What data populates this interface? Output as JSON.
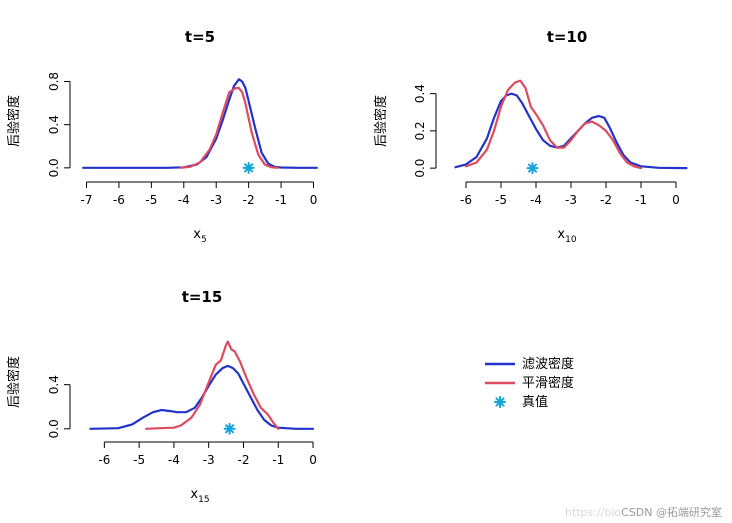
{
  "colors": {
    "filter": "#2233CC",
    "smooth": "#DE4B5F",
    "truth": "#13A4D8",
    "axis": "#000000"
  },
  "legend": {
    "items": [
      {
        "label": "滤波密度",
        "kind": "line",
        "color_key": "filter"
      },
      {
        "label": "平滑密度",
        "kind": "line",
        "color_key": "smooth"
      },
      {
        "label": "真值",
        "kind": "star",
        "color_key": "truth"
      }
    ]
  },
  "watermark": {
    "faint": "https://blo",
    "text": "CSDN @拓端研究室"
  },
  "chart_data": [
    {
      "type": "line",
      "title": "t=5",
      "ylabel": "后验密度",
      "xlabel_base": "x",
      "xlabel_sub": "5",
      "xlim": [
        -7.2,
        0.2
      ],
      "ylim": [
        -0.02,
        0.86
      ],
      "xticks": [
        -7,
        -6,
        -5,
        -4,
        -3,
        -2,
        -1,
        0
      ],
      "yticks": [
        0.0,
        0.4,
        0.8
      ],
      "yticklabels": [
        "0.0",
        "0.4",
        "0.8"
      ],
      "true_value": {
        "x": -2.0,
        "y": 0.0
      },
      "series": [
        {
          "name": "滤波密度",
          "color_key": "filter",
          "x": [
            -7.1,
            -4.5,
            -4.0,
            -3.6,
            -3.3,
            -3.0,
            -2.8,
            -2.6,
            -2.45,
            -2.3,
            -2.2,
            -2.1,
            -2.0,
            -1.8,
            -1.6,
            -1.4,
            -1.2,
            -1.0,
            -0.5,
            0.1
          ],
          "y": [
            0.0,
            0.0,
            0.005,
            0.03,
            0.1,
            0.27,
            0.44,
            0.63,
            0.76,
            0.82,
            0.8,
            0.74,
            0.62,
            0.37,
            0.14,
            0.04,
            0.01,
            0.003,
            0.0,
            0.0
          ]
        },
        {
          "name": "平滑密度",
          "color_key": "smooth",
          "x": [
            -4.1,
            -3.8,
            -3.5,
            -3.2,
            -3.0,
            -2.8,
            -2.6,
            -2.4,
            -2.3,
            -2.2,
            -2.1,
            -2.0,
            -1.9,
            -1.7,
            -1.5,
            -1.3,
            -1.1
          ],
          "y": [
            0.0,
            0.01,
            0.05,
            0.17,
            0.31,
            0.51,
            0.7,
            0.74,
            0.74,
            0.7,
            0.6,
            0.46,
            0.32,
            0.12,
            0.03,
            0.005,
            0.0
          ]
        }
      ]
    },
    {
      "type": "line",
      "title": "t=10",
      "ylabel": "后验密度",
      "xlabel_base": "x",
      "xlabel_sub": "10",
      "xlim": [
        -6.6,
        0.4
      ],
      "ylim": [
        -0.01,
        0.5
      ],
      "xticks": [
        -6,
        -5,
        -4,
        -3,
        -2,
        -1,
        0
      ],
      "yticks": [
        0.0,
        0.2,
        0.4
      ],
      "yticklabels": [
        "0.0",
        "0.2",
        "0.4"
      ],
      "true_value": {
        "x": -4.1,
        "y": 0.0
      },
      "series": [
        {
          "name": "滤波密度",
          "color_key": "filter",
          "x": [
            -6.3,
            -6.0,
            -5.7,
            -5.4,
            -5.2,
            -5.0,
            -4.85,
            -4.7,
            -4.55,
            -4.4,
            -4.2,
            -4.0,
            -3.8,
            -3.6,
            -3.4,
            -3.2,
            -3.0,
            -2.8,
            -2.6,
            -2.4,
            -2.2,
            -2.05,
            -1.9,
            -1.7,
            -1.5,
            -1.3,
            -1.0,
            -0.5,
            0.3
          ],
          "y": [
            0.005,
            0.02,
            0.06,
            0.16,
            0.27,
            0.36,
            0.39,
            0.4,
            0.39,
            0.35,
            0.28,
            0.21,
            0.15,
            0.12,
            0.11,
            0.12,
            0.16,
            0.2,
            0.24,
            0.27,
            0.28,
            0.27,
            0.22,
            0.14,
            0.07,
            0.03,
            0.01,
            0.002,
            0.0
          ]
        },
        {
          "name": "平滑密度",
          "color_key": "smooth",
          "x": [
            -6.0,
            -5.7,
            -5.4,
            -5.2,
            -5.0,
            -4.8,
            -4.6,
            -4.45,
            -4.3,
            -4.15,
            -4.0,
            -3.8,
            -3.6,
            -3.4,
            -3.2,
            -3.0,
            -2.8,
            -2.6,
            -2.4,
            -2.2,
            -2.0,
            -1.8,
            -1.6,
            -1.4,
            -1.2,
            -1.0
          ],
          "y": [
            0.01,
            0.03,
            0.1,
            0.2,
            0.33,
            0.42,
            0.46,
            0.47,
            0.43,
            0.33,
            0.29,
            0.23,
            0.15,
            0.11,
            0.11,
            0.15,
            0.2,
            0.24,
            0.25,
            0.23,
            0.2,
            0.15,
            0.08,
            0.03,
            0.01,
            0.0
          ]
        }
      ]
    },
    {
      "type": "line",
      "title": "t=15",
      "ylabel": "后验密度",
      "xlabel_base": "x",
      "xlabel_sub": "15",
      "xlim": [
        -6.7,
        0.2
      ],
      "ylim": [
        -0.02,
        0.85
      ],
      "xticks": [
        -6,
        -5,
        -4,
        -3,
        -2,
        -1,
        0
      ],
      "yticks": [
        0.0,
        0.4
      ],
      "yticklabels": [
        "0.0",
        "0.4"
      ],
      "true_value": {
        "x": -2.4,
        "y": 0.0
      },
      "series": [
        {
          "name": "滤波密度",
          "color_key": "filter",
          "x": [
            -6.4,
            -5.6,
            -5.2,
            -4.9,
            -4.6,
            -4.35,
            -4.1,
            -3.9,
            -3.65,
            -3.4,
            -3.2,
            -3.0,
            -2.8,
            -2.6,
            -2.45,
            -2.3,
            -2.15,
            -2.0,
            -1.8,
            -1.6,
            -1.4,
            -1.2,
            -1.0,
            -0.5,
            0.0
          ],
          "y": [
            0.0,
            0.005,
            0.04,
            0.1,
            0.15,
            0.17,
            0.16,
            0.15,
            0.15,
            0.19,
            0.28,
            0.39,
            0.49,
            0.55,
            0.57,
            0.55,
            0.5,
            0.41,
            0.29,
            0.17,
            0.08,
            0.03,
            0.01,
            0.0,
            0.0
          ]
        },
        {
          "name": "平滑密度",
          "color_key": "smooth",
          "x": [
            -4.8,
            -4.4,
            -4.0,
            -3.8,
            -3.5,
            -3.25,
            -3.0,
            -2.8,
            -2.65,
            -2.5,
            -2.45,
            -2.35,
            -2.25,
            -2.1,
            -1.9,
            -1.7,
            -1.5,
            -1.3,
            -1.15,
            -1.0
          ],
          "y": [
            0.0,
            0.005,
            0.01,
            0.03,
            0.1,
            0.22,
            0.42,
            0.58,
            0.62,
            0.76,
            0.79,
            0.72,
            0.7,
            0.61,
            0.45,
            0.31,
            0.19,
            0.13,
            0.06,
            0.0
          ]
        }
      ]
    }
  ]
}
